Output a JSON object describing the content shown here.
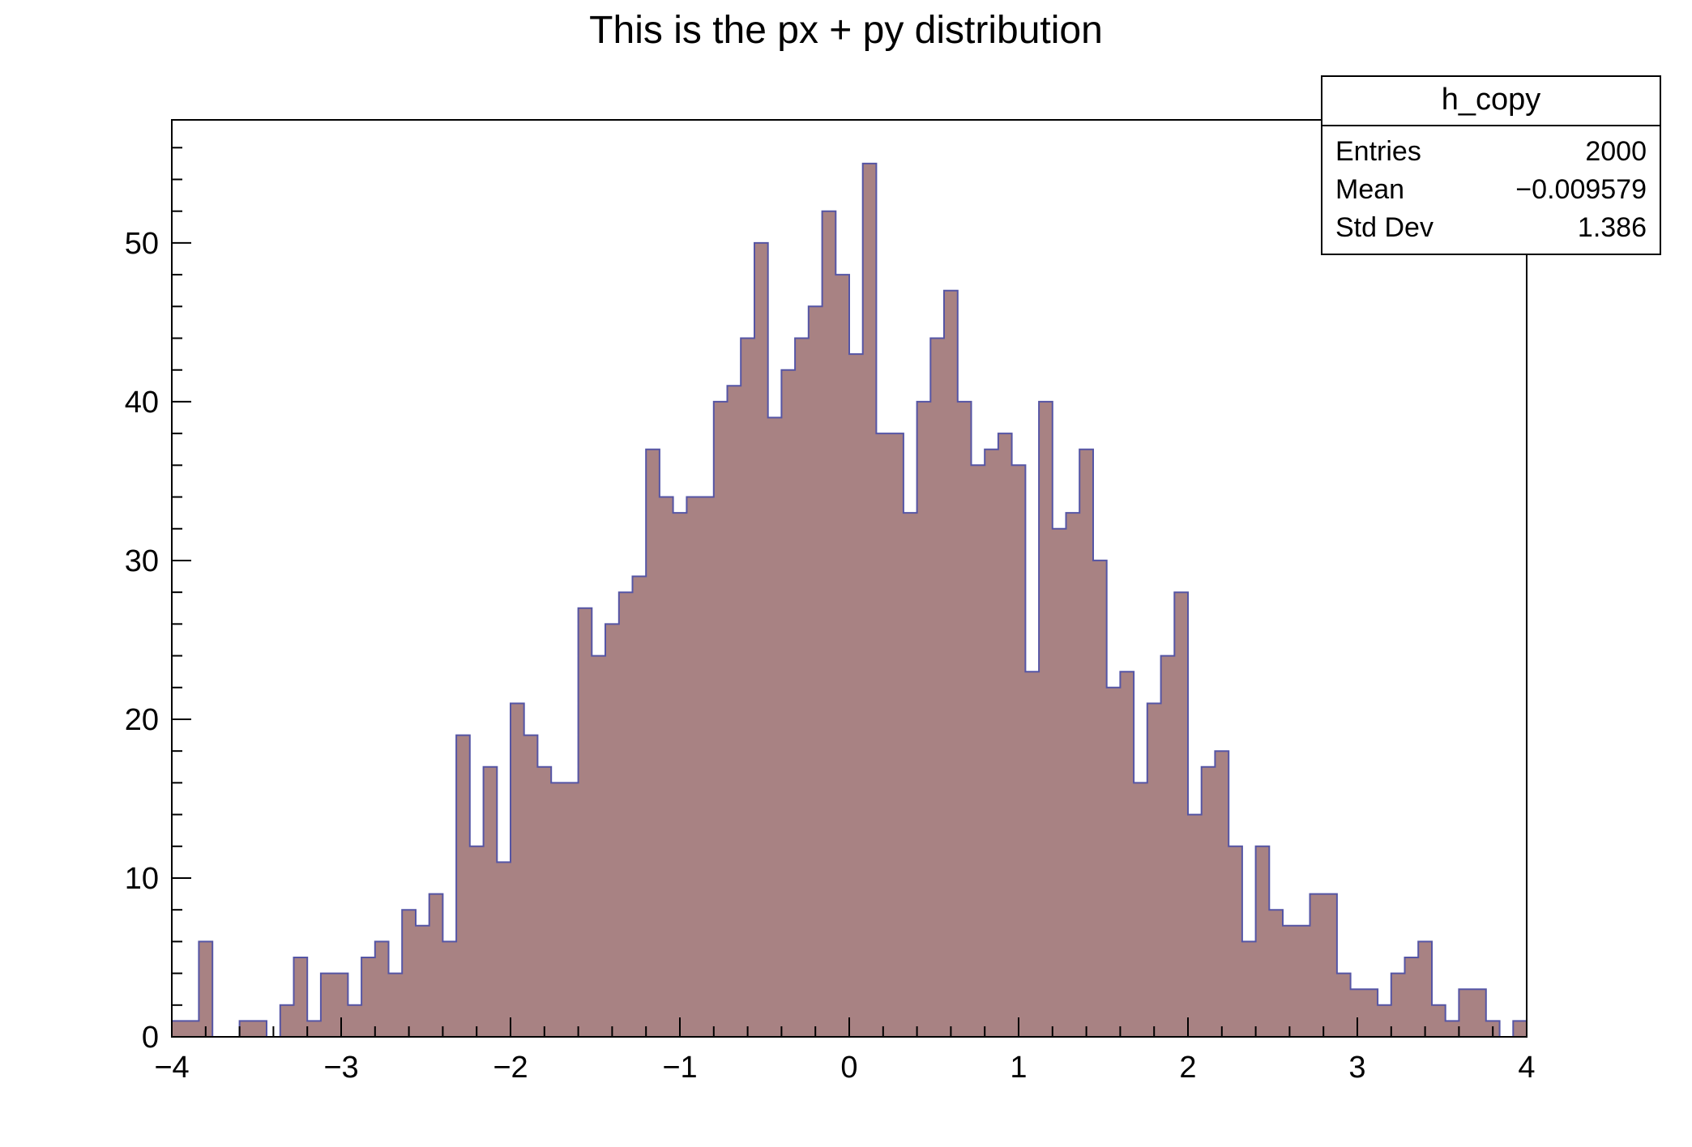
{
  "title": "This is the px + py distribution",
  "stats_box": {
    "title": "h_copy",
    "rows": [
      {
        "label": "Entries",
        "value": "2000"
      },
      {
        "label": "Mean",
        "value": "−0.009579"
      },
      {
        "label": "Std Dev",
        "value": "1.386"
      }
    ]
  },
  "chart_data": {
    "type": "bar",
    "subtype": "histogram-steps",
    "title": "This is the px + py distribution",
    "xlabel": "",
    "ylabel": "",
    "xlim": [
      -4,
      4
    ],
    "ylim": [
      0,
      57.75
    ],
    "bin_start": -4,
    "bin_width": 0.08,
    "counts": [
      1,
      1,
      6,
      0,
      0,
      1,
      1,
      0,
      2,
      5,
      1,
      4,
      4,
      2,
      5,
      6,
      4,
      8,
      7,
      9,
      6,
      19,
      12,
      17,
      11,
      21,
      19,
      17,
      16,
      16,
      27,
      24,
      26,
      28,
      29,
      37,
      34,
      33,
      34,
      34,
      40,
      41,
      44,
      50,
      39,
      42,
      44,
      46,
      52,
      48,
      43,
      55,
      38,
      38,
      33,
      40,
      44,
      47,
      40,
      36,
      37,
      38,
      36,
      23,
      40,
      32,
      33,
      37,
      30,
      22,
      23,
      16,
      21,
      24,
      28,
      14,
      17,
      18,
      12,
      6,
      12,
      8,
      7,
      7,
      9,
      9,
      4,
      3,
      3,
      2,
      4,
      5,
      6,
      2,
      1,
      3,
      3,
      1,
      0,
      1
    ],
    "x_ticks": [
      -4,
      -3,
      -2,
      -1,
      0,
      1,
      2,
      3,
      4
    ],
    "x_tick_labels": [
      "−4",
      "−3",
      "−2",
      "−1",
      "0",
      "1",
      "2",
      "3",
      "4"
    ],
    "y_ticks": [
      0,
      10,
      20,
      30,
      40,
      50
    ],
    "y_tick_labels": [
      "0",
      "10",
      "20",
      "30",
      "40",
      "50"
    ],
    "x_minor_step": 0.2,
    "y_minor_step": 2,
    "legend": "none",
    "grid": false,
    "colors": {
      "fill": "#a88283",
      "line": "#5555a5",
      "axis": "#000000",
      "background": "#ffffff"
    },
    "stats": {
      "entries": 2000,
      "mean": -0.009579,
      "std_dev": 1.386
    }
  }
}
